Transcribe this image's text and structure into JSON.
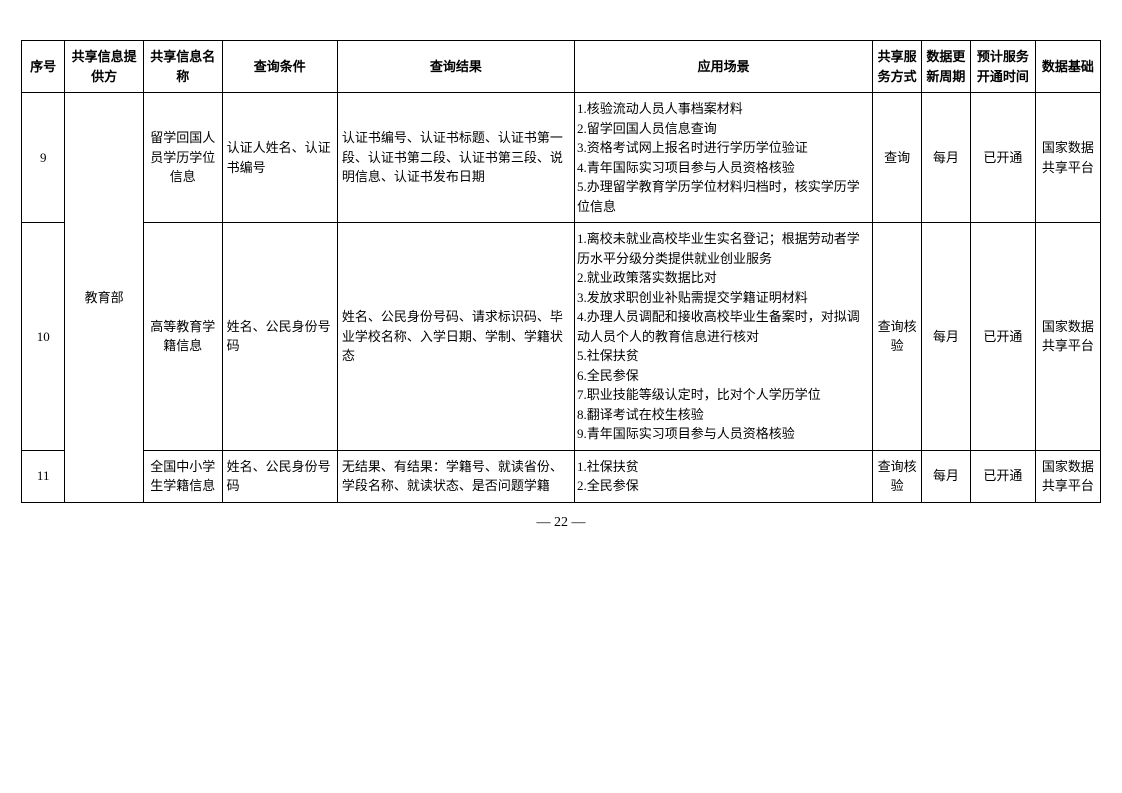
{
  "headers": {
    "seq": "序号",
    "provider": "共享信息提供方",
    "name": "共享信息名称",
    "condition": "查询条件",
    "result": "查询结果",
    "scenario": "应用场景",
    "method": "共享服务方式",
    "cycle": "数据更新周期",
    "time": "预计服务开通时间",
    "basis": "数据基础"
  },
  "provider": "教育部",
  "rows": [
    {
      "seq": "9",
      "name": "留学回国人员学历学位信息",
      "condition": "认证人姓名、认证书编号",
      "result": "认证书编号、认证书标题、认证书第一段、认证书第二段、认证书第三段、说明信息、认证书发布日期",
      "scenario": "1.核验流动人员人事档案材料\n2.留学回国人员信息查询\n3.资格考试网上报名时进行学历学位验证\n4.青年国际实习项目参与人员资格核验\n5.办理留学教育学历学位材料归档时，核实学历学位信息",
      "method": "查询",
      "cycle": "每月",
      "time": "已开通",
      "basis": "国家数据共享平台"
    },
    {
      "seq": "10",
      "name": "高等教育学籍信息",
      "condition": "姓名、公民身份号码",
      "result": "姓名、公民身份号码、请求标识码、毕业学校名称、入学日期、学制、学籍状态",
      "scenario": "1.离校未就业高校毕业生实名登记；根据劳动者学历水平分级分类提供就业创业服务\n2.就业政策落实数据比对\n3.发放求职创业补贴需提交学籍证明材料\n4.办理人员调配和接收高校毕业生备案时，对拟调动人员个人的教育信息进行核对\n5.社保扶贫\n6.全民参保\n7.职业技能等级认定时，比对个人学历学位\n8.翻译考试在校生核验\n9.青年国际实习项目参与人员资格核验",
      "method": "查询核验",
      "cycle": "每月",
      "time": "已开通",
      "basis": "国家数据共享平台"
    },
    {
      "seq": "11",
      "name": "全国中小学生学籍信息",
      "condition": "姓名、公民身份号码",
      "result": "无结果、有结果：学籍号、就读省份、学段名称、就读状态、是否问题学籍",
      "scenario": "1.社保扶贫\n2.全民参保",
      "method": "查询核验",
      "cycle": "每月",
      "time": "已开通",
      "basis": "国家数据共享平台"
    }
  ],
  "page_number": "— 22 —"
}
